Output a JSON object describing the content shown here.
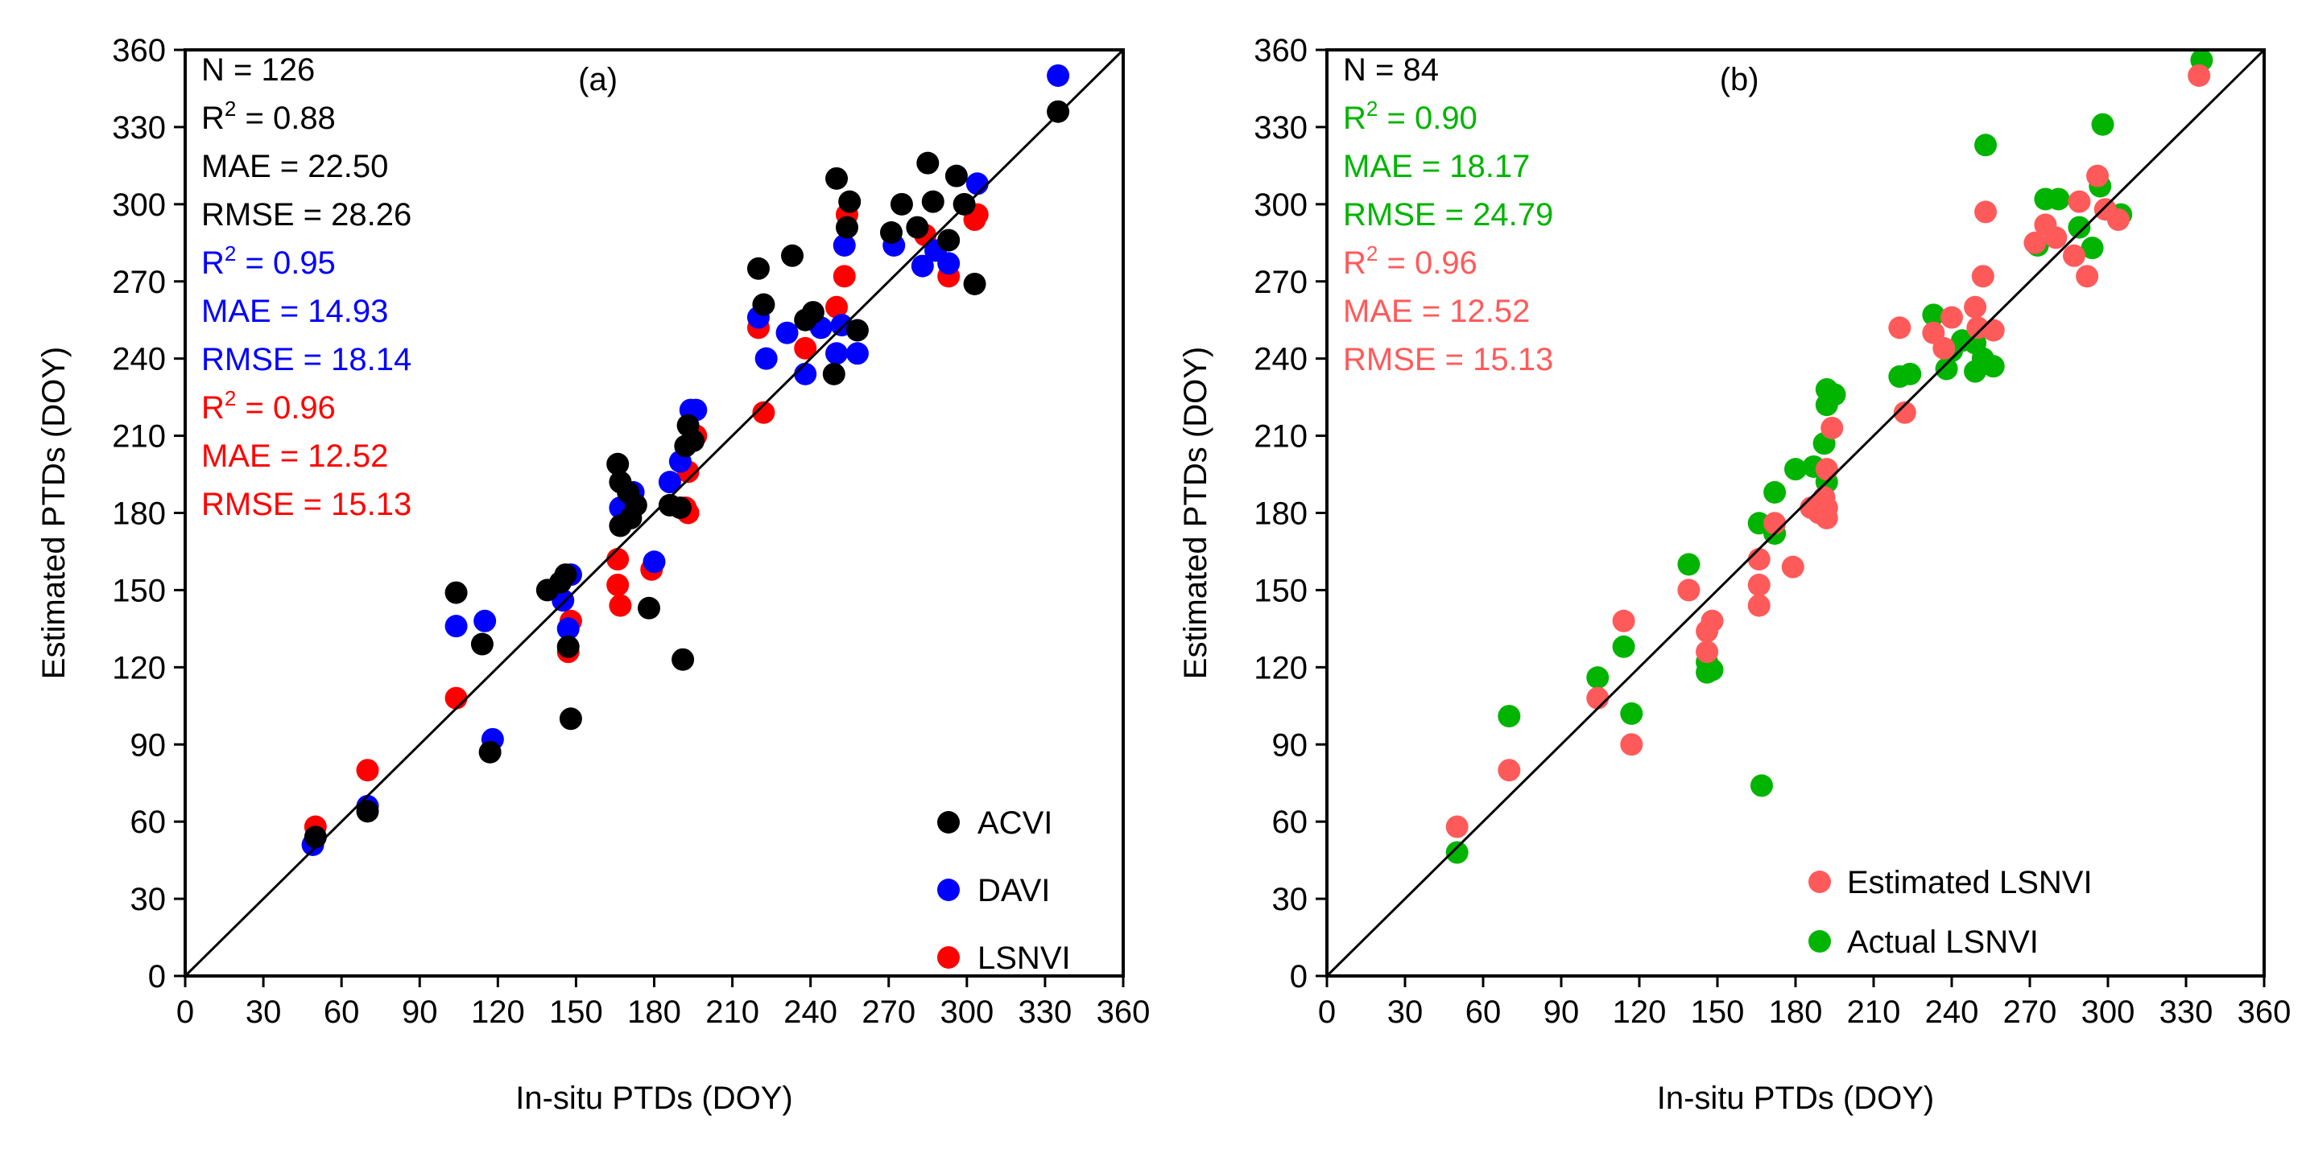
{
  "colors": {
    "ACVI": "#000000",
    "DAVI": "#0000ff",
    "LSNVI": "#ff0000",
    "Estimated LSNVI": "#ff5a5a",
    "Actual LSNVI": "#00b400",
    "line": "#000000"
  },
  "chart_data": [
    {
      "type": "scatter",
      "panel_label": "(a)",
      "xlabel": "In-situ PTDs (DOY)",
      "ylabel": "Estimated PTDs (DOY)",
      "xlim": [
        0,
        360
      ],
      "ylim": [
        0,
        360
      ],
      "ticks": [
        0,
        30,
        60,
        90,
        120,
        150,
        180,
        210,
        240,
        270,
        300,
        330,
        360
      ],
      "reference_line": "1:1",
      "legend_position": "bottom-right",
      "legend": [
        "ACVI",
        "DAVI",
        "LSNVI"
      ],
      "stats": [
        {
          "label": "N = ",
          "value": "126",
          "color_key": "ACVI"
        },
        {
          "label": "R",
          "sup": "2",
          "rest": " = ",
          "value": "0.88",
          "color_key": "ACVI"
        },
        {
          "label": "MAE = ",
          "value": "22.50",
          "color_key": "ACVI"
        },
        {
          "label": "RMSE = ",
          "value": "28.26",
          "color_key": "ACVI"
        },
        {
          "label": "R",
          "sup": "2",
          "rest": " = ",
          "value": "0.95",
          "color_key": "DAVI"
        },
        {
          "label": "MAE = ",
          "value": "14.93",
          "color_key": "DAVI"
        },
        {
          "label": "RMSE = ",
          "value": "18.14",
          "color_key": "DAVI"
        },
        {
          "label": "R",
          "sup": "2",
          "rest": " = ",
          "value": "0.96",
          "color_key": "LSNVI"
        },
        {
          "label": "MAE = ",
          "value": "12.52",
          "color_key": "LSNVI"
        },
        {
          "label": "RMSE = ",
          "value": "15.13",
          "color_key": "LSNVI"
        }
      ],
      "series": [
        {
          "name": "LSNVI",
          "points": [
            [
              50,
              58
            ],
            [
              70,
              80
            ],
            [
              104,
              108
            ],
            [
              147,
              126
            ],
            [
              148,
              138
            ],
            [
              166,
              162
            ],
            [
              166,
              152
            ],
            [
              167,
              144
            ],
            [
              179,
              158
            ],
            [
              192,
              182
            ],
            [
              193,
              180
            ],
            [
              193,
              196
            ],
            [
              196,
              210
            ],
            [
              220,
              252
            ],
            [
              222,
              219
            ],
            [
              238,
              244
            ],
            [
              250,
              260
            ],
            [
              253,
              272
            ],
            [
              254,
              296
            ],
            [
              284,
              288
            ],
            [
              293,
              272
            ],
            [
              303,
              294
            ],
            [
              304,
              296
            ]
          ]
        },
        {
          "name": "DAVI",
          "points": [
            [
              49,
              51
            ],
            [
              70,
              66
            ],
            [
              104,
              136
            ],
            [
              115,
              138
            ],
            [
              118,
              92
            ],
            [
              145,
              146
            ],
            [
              147,
              135
            ],
            [
              148,
              156
            ],
            [
              167,
              182
            ],
            [
              172,
              188
            ],
            [
              180,
              161
            ],
            [
              186,
              192
            ],
            [
              190,
              200
            ],
            [
              194,
              220
            ],
            [
              196,
              220
            ],
            [
              220,
              256
            ],
            [
              223,
              240
            ],
            [
              231,
              250
            ],
            [
              238,
              234
            ],
            [
              244,
              252
            ],
            [
              250,
              242
            ],
            [
              252,
              253
            ],
            [
              253,
              284
            ],
            [
              258,
              242
            ],
            [
              272,
              284
            ],
            [
              283,
              276
            ],
            [
              288,
              282
            ],
            [
              293,
              277
            ],
            [
              304,
              308
            ],
            [
              335,
              350
            ]
          ]
        },
        {
          "name": "ACVI",
          "points": [
            [
              50,
              54
            ],
            [
              70,
              64
            ],
            [
              104,
              149
            ],
            [
              114,
              129
            ],
            [
              117,
              87
            ],
            [
              139,
              150
            ],
            [
              144,
              153
            ],
            [
              146,
              156
            ],
            [
              147,
              128
            ],
            [
              148,
              100
            ],
            [
              166,
              199
            ],
            [
              167,
              192
            ],
            [
              167,
              175
            ],
            [
              170,
              188
            ],
            [
              171,
              178
            ],
            [
              173,
              183
            ],
            [
              178,
              143
            ],
            [
              186,
              183
            ],
            [
              190,
              182
            ],
            [
              191,
              123
            ],
            [
              192,
              206
            ],
            [
              193,
              214
            ],
            [
              195,
              208
            ],
            [
              220,
              275
            ],
            [
              222,
              261
            ],
            [
              233,
              280
            ],
            [
              238,
              255
            ],
            [
              241,
              258
            ],
            [
              249,
              234
            ],
            [
              250,
              310
            ],
            [
              254,
              291
            ],
            [
              255,
              301
            ],
            [
              258,
              251
            ],
            [
              271,
              289
            ],
            [
              275,
              300
            ],
            [
              281,
              291
            ],
            [
              285,
              316
            ],
            [
              287,
              301
            ],
            [
              293,
              286
            ],
            [
              296,
              311
            ],
            [
              299,
              300
            ],
            [
              303,
              269
            ],
            [
              335,
              336
            ]
          ]
        }
      ]
    },
    {
      "type": "scatter",
      "panel_label": "(b)",
      "xlabel": "In-situ PTDs (DOY)",
      "ylabel": "Estimated PTDs (DOY)",
      "xlim": [
        0,
        360
      ],
      "ylim": [
        0,
        360
      ],
      "ticks": [
        0,
        30,
        60,
        90,
        120,
        150,
        180,
        210,
        240,
        270,
        300,
        330,
        360
      ],
      "reference_line": "1:1",
      "legend_position": "bottom-right",
      "legend": [
        "Estimated LSNVI",
        "Actual LSNVI"
      ],
      "stats": [
        {
          "label": "N = ",
          "value": "84",
          "color_key": "line"
        },
        {
          "label": "R",
          "sup": "2",
          "rest": " = ",
          "value": "0.90",
          "color_key": "Actual LSNVI"
        },
        {
          "label": "MAE = ",
          "value": "18.17",
          "color_key": "Actual LSNVI"
        },
        {
          "label": "RMSE = ",
          "value": "24.79",
          "color_key": "Actual LSNVI"
        },
        {
          "label": "R",
          "sup": "2",
          "rest": " = ",
          "value": "0.96",
          "color_key": "Estimated LSNVI"
        },
        {
          "label": "MAE = ",
          "value": "12.52",
          "color_key": "Estimated LSNVI"
        },
        {
          "label": "RMSE = ",
          "value": "15.13",
          "color_key": "Estimated LSNVI"
        }
      ],
      "series": [
        {
          "name": "Actual LSNVI",
          "points": [
            [
              50,
              48
            ],
            [
              70,
              101
            ],
            [
              104,
              116
            ],
            [
              114,
              128
            ],
            [
              117,
              102
            ],
            [
              139,
              160
            ],
            [
              146,
              122
            ],
            [
              146,
              118
            ],
            [
              148,
              119
            ],
            [
              166,
              176
            ],
            [
              167,
              74
            ],
            [
              172,
              188
            ],
            [
              172,
              172
            ],
            [
              180,
              197
            ],
            [
              187,
              198
            ],
            [
              191,
              207
            ],
            [
              192,
              192
            ],
            [
              192,
              222
            ],
            [
              192,
              228
            ],
            [
              195,
              226
            ],
            [
              220,
              233
            ],
            [
              224,
              234
            ],
            [
              233,
              257
            ],
            [
              238,
              236
            ],
            [
              240,
              243
            ],
            [
              244,
              247
            ],
            [
              249,
              235
            ],
            [
              249,
              246
            ],
            [
              252,
              240
            ],
            [
              253,
              323
            ],
            [
              256,
              237
            ],
            [
              273,
              284
            ],
            [
              276,
              302
            ],
            [
              281,
              302
            ],
            [
              289,
              291
            ],
            [
              294,
              283
            ],
            [
              297,
              307
            ],
            [
              298,
              331
            ],
            [
              305,
              296
            ],
            [
              336,
              356
            ]
          ]
        },
        {
          "name": "Estimated LSNVI",
          "points": [
            [
              50,
              58
            ],
            [
              70,
              80
            ],
            [
              104,
              108
            ],
            [
              114,
              138
            ],
            [
              117,
              90
            ],
            [
              139,
              150
            ],
            [
              146,
              126
            ],
            [
              146,
              134
            ],
            [
              148,
              138
            ],
            [
              166,
              152
            ],
            [
              166,
              144
            ],
            [
              166,
              162
            ],
            [
              172,
              176
            ],
            [
              179,
              159
            ],
            [
              186,
              182
            ],
            [
              189,
              180
            ],
            [
              191,
              186
            ],
            [
              192,
              178
            ],
            [
              192,
              182
            ],
            [
              192,
              197
            ],
            [
              194,
              213
            ],
            [
              220,
              252
            ],
            [
              222,
              219
            ],
            [
              233,
              250
            ],
            [
              237,
              244
            ],
            [
              240,
              256
            ],
            [
              249,
              260
            ],
            [
              250,
              252
            ],
            [
              252,
              272
            ],
            [
              253,
              297
            ],
            [
              256,
              251
            ],
            [
              272,
              285
            ],
            [
              276,
              292
            ],
            [
              280,
              287
            ],
            [
              287,
              280
            ],
            [
              289,
              301
            ],
            [
              292,
              272
            ],
            [
              296,
              311
            ],
            [
              299,
              298
            ],
            [
              304,
              294
            ],
            [
              335,
              350
            ]
          ]
        }
      ]
    }
  ]
}
